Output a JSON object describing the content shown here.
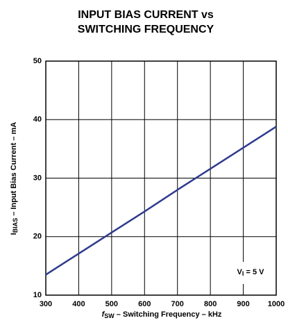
{
  "chart_data": {
    "type": "line",
    "title": [
      "INPUT BIAS CURRENT vs",
      "SWITCHING FREQUENCY"
    ],
    "xlabel": {
      "main": "f",
      "sub": "SW",
      "rest": " – Switching Frequency  – kHz"
    },
    "ylabel": {
      "main": "I",
      "sub": "BIAS",
      "rest": " – Input Bias Current – mA"
    },
    "annotation": {
      "main": "V",
      "sub": "I",
      "rest": " = 5 V"
    },
    "x": [
      300,
      400,
      500,
      600,
      700,
      800,
      900,
      1000
    ],
    "series": [
      {
        "name": "VI = 5 V",
        "color": "#2e3a8c",
        "values": [
          13.5,
          17.1,
          20.7,
          24.3,
          28.0,
          31.6,
          35.2,
          38.8
        ]
      }
    ],
    "xlim": [
      300,
      1000
    ],
    "xticks": [
      300,
      400,
      500,
      600,
      700,
      800,
      900,
      1000
    ],
    "ylim": [
      10,
      50
    ],
    "yticks": [
      10,
      20,
      30,
      40,
      50
    ],
    "grid": true
  }
}
